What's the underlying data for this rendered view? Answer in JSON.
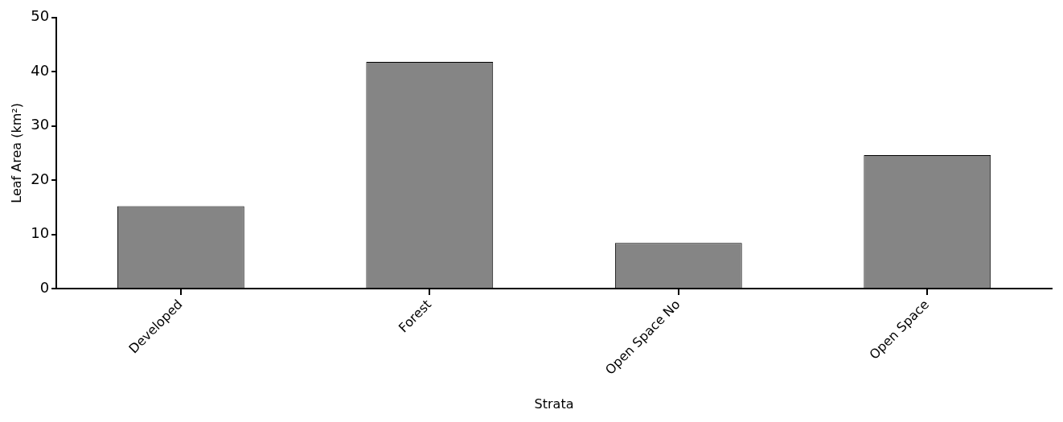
{
  "chart_data": {
    "type": "bar",
    "xlabel": "Strata",
    "ylabel": "Leaf Area (km²)",
    "categories": [
      "Developed",
      "Forest",
      "Open Space No",
      "Open Space"
    ],
    "values": [
      15.2,
      41.8,
      8.4,
      24.6
    ],
    "color": "#858585",
    "ylim": [
      0,
      50
    ],
    "yticks": [
      0,
      10,
      20,
      30,
      40,
      50
    ]
  }
}
